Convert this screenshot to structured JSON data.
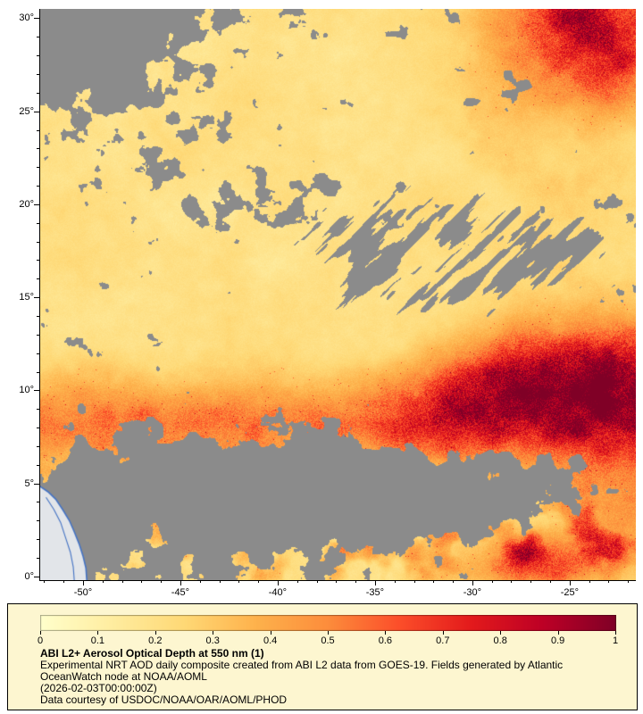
{
  "map_axes": {
    "y_ticks": [
      {
        "value": 30,
        "label": "30°"
      },
      {
        "value": 25,
        "label": "25°"
      },
      {
        "value": 20,
        "label": "20°"
      },
      {
        "value": 15,
        "label": "15°"
      },
      {
        "value": 10,
        "label": "10°"
      },
      {
        "value": 5,
        "label": "5°"
      },
      {
        "value": 0,
        "label": "0°"
      }
    ],
    "x_ticks": [
      {
        "value": -50,
        "label": "-50°"
      },
      {
        "value": -45,
        "label": "-45°"
      },
      {
        "value": -40,
        "label": "-40°"
      },
      {
        "value": -35,
        "label": "-35°"
      },
      {
        "value": -30,
        "label": "-30°"
      },
      {
        "value": -25,
        "label": "-25°"
      }
    ]
  },
  "legend": {
    "panel_background": "#fdf6d0",
    "title": "ABI L2+ Aerosol Optical Depth at 550 nm (1)",
    "description_line1": "Experimental NRT AOD daily composite created from ABI L2 data from GOES-19. Fields generated by Atlantic",
    "description_line2": "OceanWatch node at NOAA/AOML",
    "timestamp_line": "(2026-02-03T00:00:00Z)",
    "credit_line": "Data courtesy of USDOC/NOAA/OAR/AOML/PHOD",
    "colorbar_tick_labels": [
      "0",
      "0.1",
      "0.2",
      "0.3",
      "0.4",
      "0.5",
      "0.6",
      "0.7",
      "0.8",
      "0.9",
      "1"
    ]
  },
  "chart_data": {
    "type": "heatmap",
    "title": "ABI L2+ Aerosol Optical Depth at 550 nm (1)",
    "variable": "Aerosol Optical Depth (AOD) at 550 nm",
    "source": "Experimental NRT AOD daily composite from ABI L2 data, GOES-19",
    "date": "2026-02-03T00:00:00Z",
    "lon_range": [
      -52.2,
      -21.6
    ],
    "lat_range": [
      -0.2,
      30.5
    ],
    "lon_tick_values": [
      -50,
      -45,
      -40,
      -35,
      -30,
      -25
    ],
    "lat_tick_values": [
      0,
      5,
      10,
      15,
      20,
      25,
      30
    ],
    "value_range": [
      0,
      1
    ],
    "colorbar_tick_values": [
      0,
      0.1,
      0.2,
      0.3,
      0.4,
      0.5,
      0.6,
      0.7,
      0.8,
      0.9,
      1
    ],
    "colormap": {
      "name": "YlOrRd",
      "stops": [
        "#ffffcc",
        "#ffeda0",
        "#fed976",
        "#feb24c",
        "#fd8d3c",
        "#fc4e2a",
        "#e31a1c",
        "#bd0026",
        "#800026"
      ]
    },
    "no_data_color": "#8b8b8b",
    "land_fill_color": "#e2e5e9",
    "coast_line_color": "#4473c4",
    "background_aod_typical": 0.18,
    "features": [
      {
        "name": "saharan-dust-outflow-band",
        "lat_center_west": 8.2,
        "lat_center_east": 9.7,
        "lat_sigma_deg": 2.0,
        "aod_west": 0.55,
        "aod_east": 1.0
      },
      {
        "name": "east-edge-dark-red-maximum",
        "lat": 9.5,
        "lon": -23,
        "aod_peak": 1.0
      },
      {
        "name": "northeast-corner-plume",
        "lat": 29.8,
        "lon": -24.2,
        "aod_peak": 0.85
      },
      {
        "name": "bottom-right-red-streak",
        "lat": 0.8,
        "lon": -26.5,
        "aod_peak": 0.7
      },
      {
        "name": "patchy-southern-tropical-aerosol",
        "lat_range": [
          0,
          5
        ],
        "aod_range": [
          0.3,
          0.6
        ]
      },
      {
        "name": "cloud-no-data-mask",
        "color": "#8b8b8b",
        "regions": [
          "northwest-corner",
          "itcz-band-3-7N",
          "central-diagonal-streaks-15-19N",
          "scattered-20-25N",
          "right-edge-13-15N"
        ]
      },
      {
        "name": "south-america-coastline",
        "corner": "bottom-left"
      }
    ]
  }
}
